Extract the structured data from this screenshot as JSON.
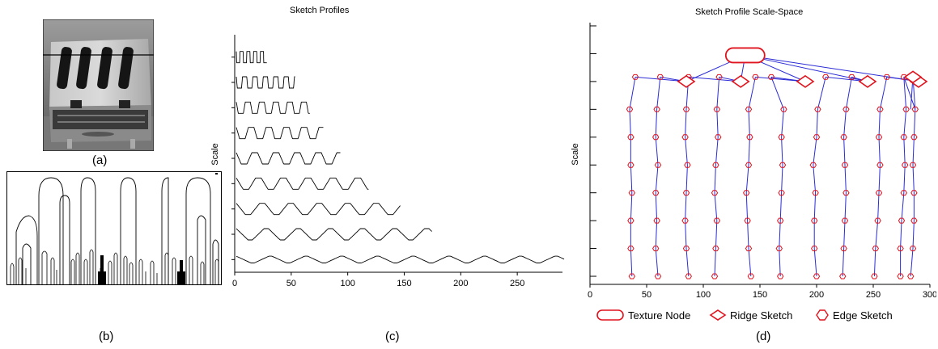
{
  "panels": {
    "a": {
      "caption": "(a)"
    },
    "b": {
      "caption": "(b)"
    },
    "c": {
      "caption": "(c)",
      "title": "Sketch Profiles",
      "ylabel": "Scale"
    },
    "d": {
      "caption": "(d)",
      "title": "Sketch Profile Scale-Space",
      "ylabel": "Scale"
    }
  },
  "legend": {
    "texture": "Texture Node",
    "ridge": "Ridge Sketch",
    "edge": "Edge Sketch",
    "color": "#e0141e"
  },
  "colors": {
    "tree": "#2b2bd6",
    "node": "#e0141e",
    "profile": "#000000"
  },
  "chart_data": [
    {
      "id": "c",
      "type": "line",
      "title": "Sketch Profiles",
      "xlabel": "",
      "ylabel": "Scale",
      "xlim": [
        0,
        290
      ],
      "xticks": [
        0,
        50,
        100,
        150,
        200,
        250
      ],
      "series_count": 9,
      "profile_lengths": [
        27,
        52,
        65,
        77,
        92,
        117,
        145,
        173,
        290
      ]
    },
    {
      "id": "d",
      "type": "scatter",
      "title": "Sketch Profile Scale-Space",
      "xlabel": "",
      "ylabel": "Scale",
      "xlim": [
        0,
        300
      ],
      "xticks": [
        0,
        50,
        100,
        150,
        200,
        250,
        300
      ],
      "levels": 9,
      "texture_nodes": [
        {
          "x": 137,
          "level": 9
        }
      ],
      "ridge_nodes": [
        {
          "x": 85,
          "level": 8
        },
        {
          "x": 133,
          "level": 8
        },
        {
          "x": 190,
          "level": 8
        },
        {
          "x": 245,
          "level": 8
        },
        {
          "x": 290,
          "level": 8
        },
        {
          "x": 285,
          "level": 7
        }
      ],
      "edge_columns": [
        [
          37,
          36,
          36,
          37,
          36,
          36,
          35
        ],
        [
          60,
          58,
          59,
          58,
          60,
          58,
          59
        ],
        [
          87,
          85,
          84,
          85,
          86,
          84,
          85
        ],
        [
          110,
          111,
          112,
          110,
          111,
          113,
          112
        ],
        [
          142,
          140,
          139,
          138,
          140,
          141,
          140
        ],
        [
          168,
          167,
          168,
          169,
          170,
          169,
          171
        ],
        [
          200,
          198,
          198,
          199,
          197,
          200,
          201
        ],
        [
          223,
          224,
          225,
          226,
          225,
          224,
          226
        ],
        [
          251,
          252,
          254,
          255,
          256,
          255,
          256
        ],
        [
          274,
          274,
          275,
          277,
          278,
          277,
          279
        ],
        [
          283,
          285,
          286,
          286,
          285,
          286,
          287
        ]
      ],
      "top_edge_x": [
        40,
        62,
        87,
        114,
        146,
        160,
        208,
        231,
        262,
        277
      ]
    }
  ]
}
